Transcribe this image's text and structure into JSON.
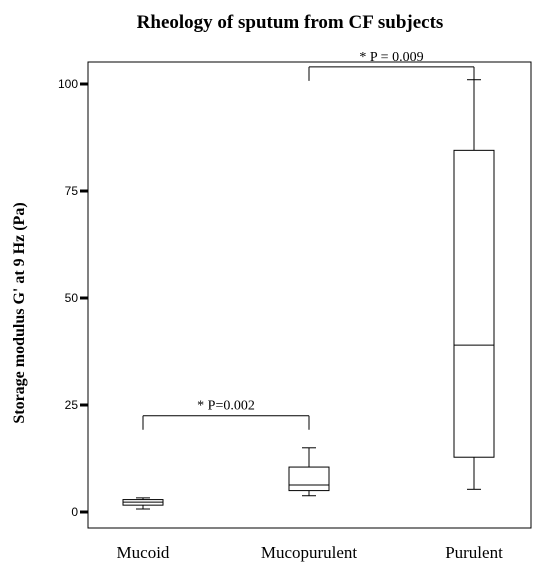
{
  "chart_data": {
    "type": "box",
    "title": "Rheology of sputum from CF subjects",
    "xlabel": "",
    "ylabel": "Storage modulus G' at 9 Hz (Pa)",
    "ylim": [
      -2,
      106
    ],
    "yticks": [
      0,
      25,
      50,
      75,
      100
    ],
    "grid": false,
    "categories": [
      "Mucoid",
      "Mucopurulent",
      "Purulent"
    ],
    "boxes": [
      {
        "category": "Mucoid",
        "min": 0.7,
        "q1": 1.6,
        "median": 2.3,
        "q3": 2.9,
        "max": 3.3
      },
      {
        "category": "Mucopurulent",
        "min": 3.8,
        "q1": 5.0,
        "median": 6.3,
        "q3": 10.5,
        "max": 15.0
      },
      {
        "category": "Purulent",
        "min": 5.3,
        "q1": 12.8,
        "median": 39.0,
        "q3": 84.5,
        "max": 101.0
      }
    ],
    "annotations": [
      {
        "text": "* P=0.002",
        "from": "Mucoid",
        "to": "Mucopurulent",
        "y": 22.5
      },
      {
        "text": "* P = 0.009",
        "from": "Mucopurulent",
        "to": "Purulent",
        "y": 104
      }
    ]
  }
}
